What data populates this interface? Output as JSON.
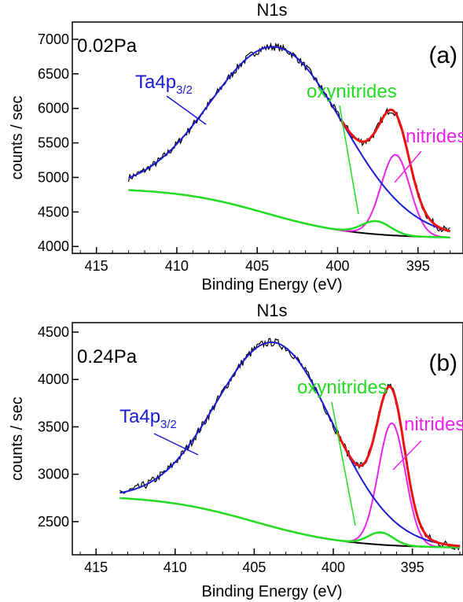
{
  "colors": {
    "raw": "#000000",
    "fit": "#ee1111",
    "ta4p": "#1a1ad6",
    "oxynitrides": "#22dd22",
    "nitrides": "#ee22ee",
    "background": "#000000"
  },
  "chart_data": [
    {
      "type": "line",
      "title": "N1s",
      "panel_label": "(a)",
      "pressure": "0.02Pa",
      "xlabel": "Binding Energy (eV)",
      "ylabel": "counts / sec",
      "x_reversed": true,
      "xlim": [
        416.5,
        392.2
      ],
      "ylim": [
        3900,
        7250
      ],
      "xticks": [
        415,
        410,
        405,
        400,
        395
      ],
      "yticks": [
        4000,
        4500,
        5000,
        5500,
        6000,
        6500,
        7000
      ],
      "grid": false,
      "x_range": [
        413,
        393
      ],
      "baseline": {
        "y0": 4850,
        "y1": 4120,
        "mid": 404.5,
        "width": 2.8
      },
      "peaks": [
        {
          "name": "Ta4p",
          "subscript": "3/2",
          "center": 403.6,
          "height": 2450,
          "sigma": 4.1
        },
        {
          "name": "oxynitrides",
          "center": 397.6,
          "height": 190,
          "sigma": 0.9
        },
        {
          "name": "nitrides",
          "center": 396.4,
          "height": 1170,
          "sigma": 0.9
        }
      ],
      "noise": 55,
      "series": [
        {
          "name": "Ta4p",
          "subscript": "3/2",
          "role": "ta4p"
        },
        {
          "name": "oxynitrides",
          "role": "oxynitrides"
        },
        {
          "name": "nitrides",
          "role": "nitrides"
        }
      ]
    },
    {
      "type": "line",
      "title": "N1s",
      "panel_label": "(b)",
      "pressure": "0.24Pa",
      "xlabel": "Binding Energy (eV)",
      "ylabel": "counts / sec",
      "x_reversed": true,
      "xlim": [
        416.5,
        391.8
      ],
      "ylim": [
        2150,
        4600
      ],
      "xticks": [
        415,
        410,
        405,
        400,
        395
      ],
      "yticks": [
        2500,
        3000,
        3500,
        4000,
        4500
      ],
      "grid": false,
      "x_range": [
        413.5,
        392
      ],
      "baseline": {
        "y0": 2780,
        "y1": 2220,
        "mid": 405,
        "width": 3.0
      },
      "peaks": [
        {
          "name": "Ta4p",
          "subscript": "3/2",
          "center": 403.6,
          "height": 1950,
          "sigma": 3.7
        },
        {
          "name": "oxynitrides",
          "center": 397.0,
          "height": 130,
          "sigma": 0.8
        },
        {
          "name": "nitrides",
          "center": 396.3,
          "height": 1290,
          "sigma": 0.85
        }
      ],
      "noise": 45,
      "series": [
        {
          "name": "Ta4p",
          "subscript": "3/2",
          "role": "ta4p"
        },
        {
          "name": "oxynitrides",
          "role": "oxynitrides"
        },
        {
          "name": "nitrides",
          "role": "nitrides"
        }
      ]
    }
  ]
}
